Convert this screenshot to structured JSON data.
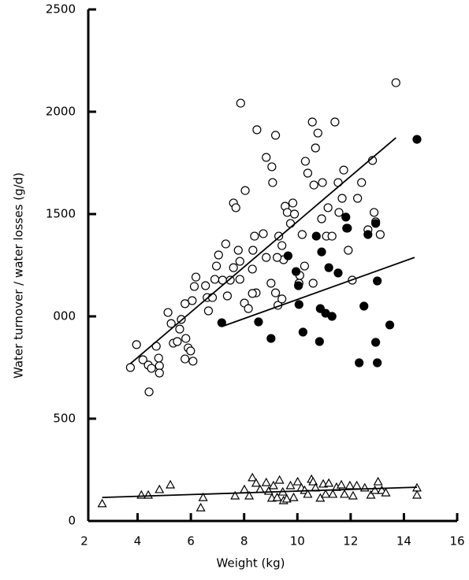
{
  "chart_data": {
    "type": "scatter",
    "xlabel": "Weight (kg)",
    "ylabel": "Water turnover / water losses   (g/d)",
    "xlim": [
      2,
      16
    ],
    "xticks": [
      2,
      4,
      6,
      8,
      10,
      12,
      14,
      16
    ],
    "ylim": [
      0,
      2500
    ],
    "yticks": [
      0,
      500,
      {
        "value": 1000,
        "label": "000"
      },
      1500,
      2000,
      2500
    ],
    "series": [
      {
        "marker": "open-circle",
        "color": "#000000",
        "x": [
          3.73,
          3.96,
          4.2,
          4.4,
          4.52,
          4.43,
          4.7,
          4.79,
          4.82,
          4.82,
          5.14,
          5.26,
          5.34,
          5.49,
          5.58,
          5.64,
          5.81,
          5.78,
          5.9,
          5.99,
          6.08,
          5.78,
          6.05,
          6.13,
          6.19,
          6.55,
          6.61,
          6.66,
          6.81,
          6.9,
          6.96,
          7.04,
          7.19,
          7.31,
          7.37,
          7.48,
          7.6,
          7.78,
          7.84,
          7.84,
          8.01,
          8.16,
          8.31,
          8.33,
          8.39,
          8.45,
          8.72,
          8.83,
          9.01,
          9.18,
          9.27,
          9.42,
          9.48,
          7.6,
          7.69,
          7.87,
          8.04,
          8.31,
          8.48,
          8.83,
          9.04,
          9.07,
          9.18,
          9.24,
          9.3,
          9.42,
          9.54,
          9.62,
          9.74,
          9.83,
          9.89,
          10.06,
          10.09,
          10.18,
          10.3,
          10.39,
          10.56,
          10.62,
          10.68,
          10.77,
          10.91,
          10.94,
          11.09,
          11.15,
          11.3,
          11.41,
          11.56,
          11.53,
          11.68,
          11.74,
          11.85,
          11.91,
          12.06,
          12.26,
          12.41,
          12.65,
          12.88,
          12.94,
          13.11,
          12.82,
          13.7,
          10.59,
          10.27
        ],
        "y": [
          750,
          862,
          788,
          762,
          746,
          631,
          854,
          796,
          758,
          723,
          1019,
          965,
          869,
          877,
          938,
          985,
          892,
          792,
          846,
          831,
          781,
          1062,
          1077,
          1146,
          1192,
          1150,
          1092,
          1027,
          1092,
          1181,
          1246,
          1300,
          1177,
          1354,
          1100,
          1177,
          1238,
          1323,
          1269,
          1181,
          1065,
          1038,
          1231,
          1323,
          1392,
          1115,
          1404,
          1288,
          1162,
          1115,
          1054,
          1346,
          1277,
          1554,
          1531,
          2042,
          1615,
          1112,
          1912,
          1777,
          1731,
          1654,
          1885,
          1288,
          1392,
          1085,
          1538,
          1508,
          1454,
          1554,
          1500,
          1162,
          1200,
          1400,
          1758,
          1700,
          1950,
          1642,
          1823,
          1896,
          1477,
          1654,
          1392,
          1531,
          1392,
          1950,
          1508,
          1654,
          1577,
          1715,
          1431,
          1323,
          1177,
          1577,
          1654,
          1423,
          1508,
          1462,
          1400,
          1762,
          2142,
          1162,
          1246
        ]
      },
      {
        "marker": "filled-circle",
        "color": "#000000",
        "x": [
          7.16,
          8.54,
          9.01,
          9.65,
          9.95,
          10.04,
          10.06,
          10.21,
          10.71,
          10.91,
          10.86,
          10.83,
          11.06,
          11.18,
          11.3,
          11.53,
          11.82,
          11.88,
          12.32,
          12.5,
          12.65,
          12.94,
          13.0,
          12.94,
          13.0,
          13.47,
          14.49
        ],
        "y": [
          969,
          973,
          892,
          1296,
          1219,
          1150,
          1058,
          923,
          1392,
          1315,
          1038,
          877,
          1015,
          1238,
          1000,
          1212,
          1485,
          1431,
          773,
          1050,
          1400,
          1454,
          1173,
          873,
          773,
          958,
          1865
        ]
      },
      {
        "marker": "triangle",
        "color": "#000000",
        "x": [
          2.67,
          4.14,
          4.4,
          4.82,
          5.23,
          6.46,
          6.37,
          7.66,
          8.01,
          8.19,
          8.31,
          8.45,
          8.6,
          8.83,
          8.92,
          9.04,
          9.1,
          9.24,
          9.33,
          9.45,
          9.48,
          9.6,
          9.74,
          9.86,
          10.01,
          10.15,
          10.27,
          10.39,
          10.53,
          10.59,
          10.68,
          10.86,
          10.97,
          11.06,
          11.18,
          11.33,
          11.47,
          11.65,
          11.77,
          11.97,
          12.09,
          12.23,
          12.53,
          12.76,
          12.91,
          13.03,
          13.17,
          13.32,
          14.49,
          14.49
        ],
        "y": [
          85,
          127,
          127,
          154,
          177,
          115,
          65,
          123,
          154,
          123,
          212,
          185,
          154,
          188,
          146,
          112,
          173,
          115,
          200,
          142,
          100,
          108,
          173,
          115,
          192,
          162,
          150,
          131,
          204,
          192,
          162,
          112,
          181,
          131,
          185,
          131,
          165,
          177,
          131,
          173,
          123,
          173,
          162,
          127,
          150,
          192,
          150,
          138,
          162,
          127
        ]
      },
      {
        "marker": "line",
        "color": "#000000",
        "x": [
          3.73,
          13.7
        ],
        "y": [
          769,
          1873
        ]
      },
      {
        "marker": "line",
        "color": "#000000",
        "x": [
          7.16,
          14.4
        ],
        "y": [
          950,
          1288
        ]
      },
      {
        "marker": "line",
        "color": "#000000",
        "x": [
          2.67,
          14.49
        ],
        "y": [
          115,
          165
        ]
      }
    ]
  }
}
